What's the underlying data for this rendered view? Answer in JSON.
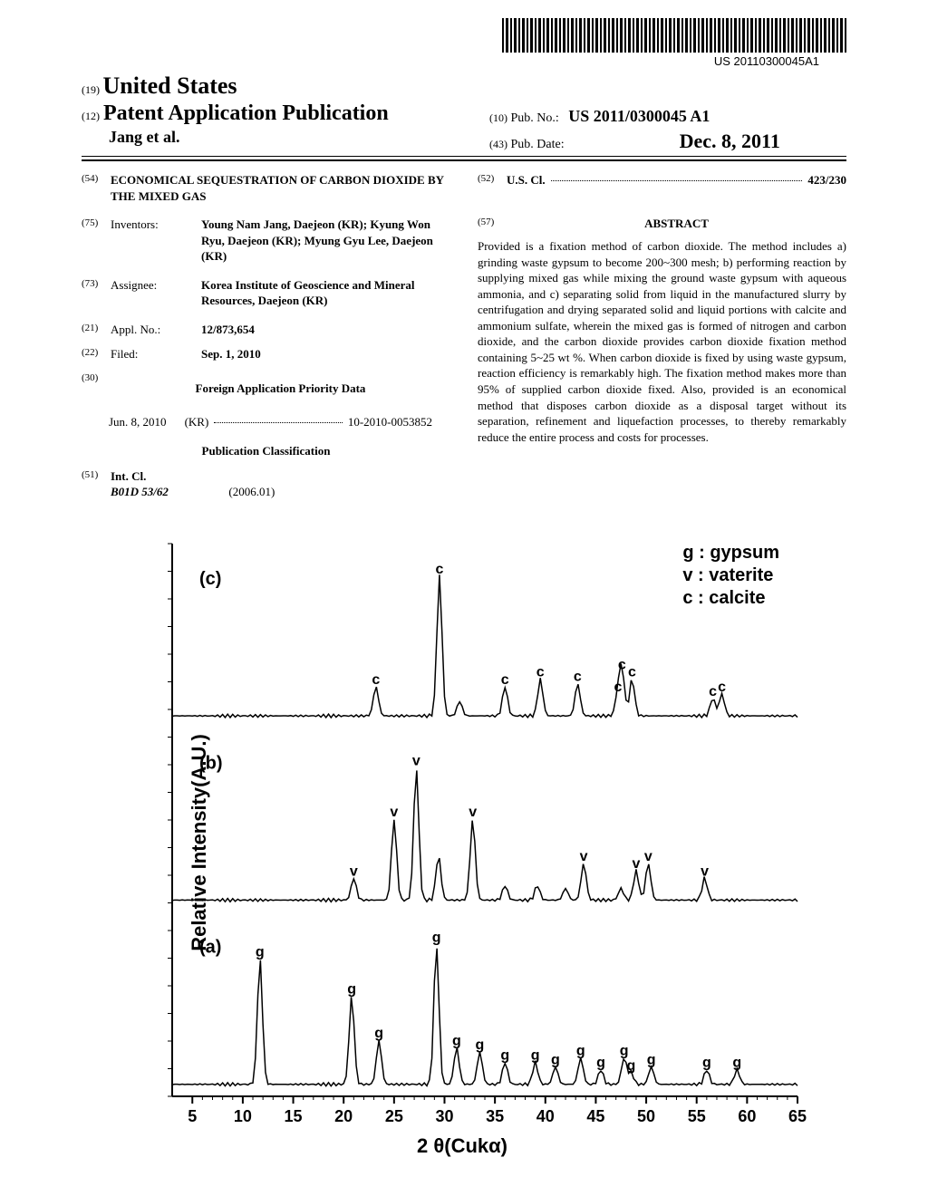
{
  "barcode_text": "US 20110300045A1",
  "header": {
    "country_num": "(19)",
    "country": "United States",
    "pub_num": "(12)",
    "pub_type": "Patent Application Publication",
    "authors": "Jang et al.",
    "right": {
      "pubno_num": "(10)",
      "pubno_label": "Pub. No.:",
      "pubno": "US 2011/0300045 A1",
      "date_num": "(43)",
      "date_label": "Pub. Date:",
      "date": "Dec. 8, 2011"
    }
  },
  "left_col": {
    "title_num": "(54)",
    "title": "ECONOMICAL SEQUESTRATION OF CARBON DIOXIDE BY THE MIXED GAS",
    "inventors_num": "(75)",
    "inventors_label": "Inventors:",
    "inventors": "Young Nam Jang, Daejeon (KR); Kyung Won Ryu, Daejeon (KR); Myung Gyu Lee, Daejeon (KR)",
    "assignee_num": "(73)",
    "assignee_label": "Assignee:",
    "assignee": "Korea Institute of Geoscience and Mineral Resources, Daejeon (KR)",
    "applno_num": "(21)",
    "applno_label": "Appl. No.:",
    "applno": "12/873,654",
    "filed_num": "(22)",
    "filed_label": "Filed:",
    "filed": "Sep. 1, 2010",
    "priority_num": "(30)",
    "priority_heading": "Foreign Application Priority Data",
    "priority_date": "Jun. 8, 2010",
    "priority_country": "(KR)",
    "priority_no": "10-2010-0053852",
    "pubclass_heading": "Publication Classification",
    "intcl_num": "(51)",
    "intcl_label": "Int. Cl.",
    "intcl_code": "B01D 53/62",
    "intcl_date": "(2006.01)"
  },
  "right_col": {
    "uscl_num": "(52)",
    "uscl_label": "U.S. Cl.",
    "uscl_val": "423/230",
    "abstract_num": "(57)",
    "abstract_heading": "ABSTRACT",
    "abstract": "Provided is a fixation method of carbon dioxide. The method includes a) grinding waste gypsum to become 200~300 mesh; b) performing reaction by supplying mixed gas while mixing the ground waste gypsum with aqueous ammonia, and c) separating solid from liquid in the manufactured slurry by centrifugation and drying separated solid and liquid portions with calcite and ammonium sulfate, wherein the mixed gas is formed of nitrogen and carbon dioxide, and the carbon dioxide provides carbon dioxide fixation method containing 5~25 wt %. When carbon dioxide is fixed by using waste gypsum, reaction efficiency is remarkably high. The fixation method makes more than 95% of supplied carbon dioxide fixed. Also, provided is an economical method that disposes carbon dioxide as a disposal target without its separation, refinement and liquefaction processes, to thereby remarkably reduce the entire process and costs for processes."
  },
  "chart": {
    "type": "xrd-line",
    "ylabel": "Relative Intensity(A.U.)",
    "xlabel": "2 θ(Cukα)",
    "xlim": [
      3,
      65
    ],
    "xtick_start": 5,
    "xtick_step": 5,
    "xtick_end": 65,
    "tick_fontsize": 18,
    "tick_fontweight": "bold",
    "axis_color": "#000000",
    "line_color": "#000000",
    "line_width": 1.5,
    "background_color": "#ffffff",
    "panels": [
      {
        "label": "(a)",
        "peaks": [
          {
            "x": 11.7,
            "h": 0.85,
            "tag": "g"
          },
          {
            "x": 20.8,
            "h": 0.6,
            "tag": "g"
          },
          {
            "x": 23.5,
            "h": 0.3,
            "tag": "g"
          },
          {
            "x": 29.2,
            "h": 0.95,
            "tag": "g"
          },
          {
            "x": 31.2,
            "h": 0.25,
            "tag": "g"
          },
          {
            "x": 33.5,
            "h": 0.22,
            "tag": "g"
          },
          {
            "x": 36.0,
            "h": 0.15,
            "tag": "g"
          },
          {
            "x": 39.0,
            "h": 0.15,
            "tag": "g"
          },
          {
            "x": 41.0,
            "h": 0.12,
            "tag": "g"
          },
          {
            "x": 43.5,
            "h": 0.18,
            "tag": "g"
          },
          {
            "x": 45.5,
            "h": 0.1,
            "tag": "g"
          },
          {
            "x": 47.8,
            "h": 0.18,
            "tag": "g"
          },
          {
            "x": 48.5,
            "h": 0.08,
            "tag": "g"
          },
          {
            "x": 50.5,
            "h": 0.12,
            "tag": "g"
          },
          {
            "x": 56.0,
            "h": 0.1,
            "tag": "g"
          },
          {
            "x": 59.0,
            "h": 0.1,
            "tag": "g"
          }
        ]
      },
      {
        "label": "(b)",
        "peaks": [
          {
            "x": 21.0,
            "h": 0.15,
            "tag": "v"
          },
          {
            "x": 25.0,
            "h": 0.55,
            "tag": "v"
          },
          {
            "x": 27.2,
            "h": 0.9,
            "tag": "v"
          },
          {
            "x": 29.4,
            "h": 0.3,
            "tag": ""
          },
          {
            "x": 32.8,
            "h": 0.55,
            "tag": "v"
          },
          {
            "x": 36.0,
            "h": 0.1,
            "tag": ""
          },
          {
            "x": 39.2,
            "h": 0.1,
            "tag": ""
          },
          {
            "x": 42.0,
            "h": 0.08,
            "tag": ""
          },
          {
            "x": 43.8,
            "h": 0.25,
            "tag": "v"
          },
          {
            "x": 47.5,
            "h": 0.08,
            "tag": ""
          },
          {
            "x": 49.0,
            "h": 0.2,
            "tag": "v"
          },
          {
            "x": 50.2,
            "h": 0.25,
            "tag": "v"
          },
          {
            "x": 55.8,
            "h": 0.15,
            "tag": "v"
          }
        ]
      },
      {
        "label": "(c)",
        "peaks": [
          {
            "x": 23.2,
            "h": 0.2,
            "tag": "c"
          },
          {
            "x": 29.5,
            "h": 0.95,
            "tag": "c"
          },
          {
            "x": 31.5,
            "h": 0.1,
            "tag": ""
          },
          {
            "x": 36.0,
            "h": 0.2,
            "tag": "c"
          },
          {
            "x": 39.5,
            "h": 0.25,
            "tag": "c"
          },
          {
            "x": 43.2,
            "h": 0.22,
            "tag": "c"
          },
          {
            "x": 47.2,
            "h": 0.15,
            "tag": "c"
          },
          {
            "x": 47.6,
            "h": 0.3,
            "tag": "c"
          },
          {
            "x": 48.6,
            "h": 0.25,
            "tag": "c"
          },
          {
            "x": 56.6,
            "h": 0.12,
            "tag": "c"
          },
          {
            "x": 57.5,
            "h": 0.15,
            "tag": "c"
          }
        ]
      }
    ],
    "legend": [
      {
        "key": "g",
        "label": "gypsum"
      },
      {
        "key": "v",
        "label": "vaterite"
      },
      {
        "key": "c",
        "label": "calcite"
      }
    ]
  }
}
